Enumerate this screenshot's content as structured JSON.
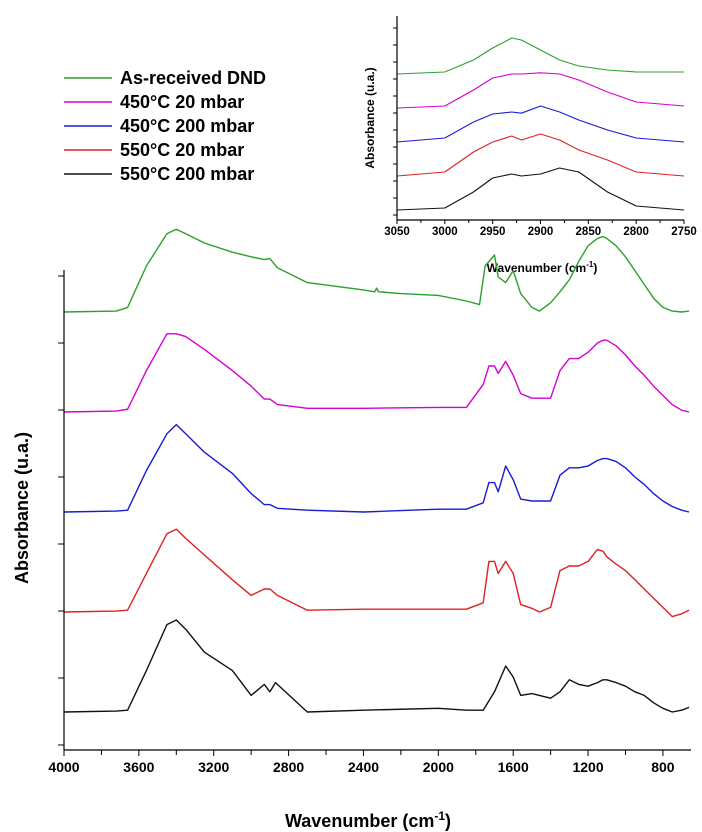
{
  "chart_data": [
    {
      "type": "line",
      "id": "main",
      "xlabel": "Wavenumber (cm",
      "xlabel_sup": "-1",
      "xlabel_tail": ")",
      "ylabel": "Absorbance (u.a.)",
      "xlim": [
        4000,
        650
      ],
      "x_reversed": true,
      "xticks": [
        4000,
        3600,
        3200,
        2800,
        2400,
        2000,
        1600,
        1200,
        800
      ],
      "y_ticks_labeled": false,
      "grid": false,
      "series": [
        {
          "name": "As-received DND",
          "color": "#2ca02c",
          "offset": 4,
          "x": [
            4000,
            3720,
            3660,
            3560,
            3450,
            3400,
            3350,
            3250,
            3100,
            3000,
            2930,
            2900,
            2860,
            2700,
            2400,
            2340,
            2330,
            2320,
            2200,
            2000,
            1850,
            1780,
            1750,
            1700,
            1680,
            1640,
            1600,
            1560,
            1500,
            1460,
            1400,
            1350,
            1300,
            1250,
            1200,
            1150,
            1120,
            1100,
            1050,
            1000,
            950,
            900,
            850,
            800,
            750,
            700,
            660
          ],
          "y": [
            0,
            0.01,
            0.05,
            0.5,
            0.85,
            0.9,
            0.85,
            0.75,
            0.65,
            0.6,
            0.57,
            0.58,
            0.48,
            0.32,
            0.24,
            0.22,
            0.26,
            0.22,
            0.2,
            0.18,
            0.12,
            0.08,
            0.5,
            0.62,
            0.38,
            0.32,
            0.45,
            0.2,
            0.05,
            0.01,
            0.1,
            0.22,
            0.35,
            0.55,
            0.72,
            0.8,
            0.82,
            0.8,
            0.72,
            0.6,
            0.45,
            0.3,
            0.15,
            0.05,
            0.01,
            0.0,
            0.01
          ]
        },
        {
          "name": "450°C 20 mbar",
          "color": "#d400d4",
          "offset": 3,
          "x": [
            4000,
            3720,
            3660,
            3560,
            3450,
            3400,
            3350,
            3250,
            3100,
            3000,
            2930,
            2900,
            2860,
            2700,
            2400,
            2000,
            1850,
            1760,
            1730,
            1700,
            1680,
            1640,
            1600,
            1560,
            1500,
            1460,
            1400,
            1350,
            1300,
            1250,
            1200,
            1150,
            1120,
            1100,
            1050,
            1000,
            950,
            900,
            850,
            800,
            750,
            700,
            660
          ],
          "y": [
            0.0,
            0.01,
            0.03,
            0.45,
            0.85,
            0.85,
            0.82,
            0.68,
            0.45,
            0.28,
            0.14,
            0.14,
            0.08,
            0.04,
            0.04,
            0.05,
            0.05,
            0.3,
            0.5,
            0.5,
            0.42,
            0.55,
            0.4,
            0.2,
            0.15,
            0.15,
            0.15,
            0.45,
            0.58,
            0.58,
            0.65,
            0.75,
            0.78,
            0.78,
            0.72,
            0.62,
            0.5,
            0.4,
            0.28,
            0.18,
            0.08,
            0.02,
            0.0
          ]
        },
        {
          "name": "450°C 200 mbar",
          "color": "#1a1ad4",
          "offset": 2,
          "x": [
            4000,
            3720,
            3660,
            3560,
            3450,
            3400,
            3350,
            3250,
            3100,
            3000,
            2930,
            2900,
            2860,
            2700,
            2400,
            2000,
            1850,
            1760,
            1730,
            1700,
            1680,
            1640,
            1600,
            1560,
            1500,
            1460,
            1400,
            1350,
            1300,
            1250,
            1200,
            1150,
            1120,
            1100,
            1050,
            1000,
            950,
            900,
            850,
            800,
            750,
            700,
            660
          ],
          "y": [
            0.0,
            0.01,
            0.02,
            0.45,
            0.85,
            0.95,
            0.85,
            0.65,
            0.42,
            0.2,
            0.08,
            0.08,
            0.04,
            0.02,
            0.0,
            0.03,
            0.03,
            0.1,
            0.32,
            0.32,
            0.22,
            0.5,
            0.35,
            0.14,
            0.12,
            0.12,
            0.12,
            0.4,
            0.48,
            0.48,
            0.5,
            0.56,
            0.58,
            0.58,
            0.55,
            0.48,
            0.38,
            0.3,
            0.2,
            0.12,
            0.06,
            0.02,
            0.0
          ]
        },
        {
          "name": "550°C 20 mbar",
          "color": "#e02020",
          "offset": 1,
          "x": [
            4000,
            3720,
            3660,
            3560,
            3450,
            3400,
            3350,
            3250,
            3100,
            3000,
            2930,
            2900,
            2860,
            2700,
            2400,
            2000,
            1850,
            1760,
            1730,
            1700,
            1680,
            1640,
            1600,
            1560,
            1500,
            1460,
            1400,
            1350,
            1300,
            1250,
            1200,
            1150,
            1120,
            1100,
            1050,
            1000,
            950,
            900,
            850,
            800,
            750,
            700,
            660
          ],
          "y": [
            0.0,
            0.01,
            0.02,
            0.42,
            0.85,
            0.9,
            0.8,
            0.62,
            0.35,
            0.18,
            0.25,
            0.25,
            0.18,
            0.02,
            0.03,
            0.03,
            0.03,
            0.1,
            0.55,
            0.55,
            0.42,
            0.55,
            0.42,
            0.08,
            0.04,
            0.0,
            0.05,
            0.45,
            0.5,
            0.5,
            0.55,
            0.68,
            0.66,
            0.6,
            0.52,
            0.45,
            0.35,
            0.25,
            0.15,
            0.05,
            -0.05,
            -0.02,
            0.02
          ]
        },
        {
          "name": "550°C 200 mbar",
          "color": "#111111",
          "offset": 0,
          "x": [
            4000,
            3720,
            3660,
            3560,
            3450,
            3400,
            3350,
            3250,
            3100,
            3000,
            2930,
            2900,
            2870,
            2700,
            2400,
            2000,
            1850,
            1760,
            1700,
            1640,
            1600,
            1560,
            1500,
            1460,
            1400,
            1350,
            1300,
            1250,
            1200,
            1150,
            1120,
            1100,
            1050,
            1000,
            950,
            900,
            850,
            800,
            750,
            700,
            660
          ],
          "y": [
            0.0,
            0.01,
            0.02,
            0.45,
            0.95,
            1.0,
            0.9,
            0.65,
            0.45,
            0.18,
            0.3,
            0.22,
            0.32,
            0.0,
            0.02,
            0.04,
            0.02,
            0.02,
            0.22,
            0.5,
            0.38,
            0.18,
            0.2,
            0.18,
            0.15,
            0.22,
            0.35,
            0.3,
            0.28,
            0.32,
            0.35,
            0.35,
            0.32,
            0.28,
            0.22,
            0.18,
            0.1,
            0.04,
            0.0,
            0.02,
            0.05
          ]
        }
      ]
    },
    {
      "type": "line",
      "id": "inset",
      "xlabel": "Wavenumber (cm",
      "xlabel_sup": "-1",
      "xlabel_tail": ")",
      "ylabel": "Absorbance (u.a.)",
      "xlim": [
        3050,
        2750
      ],
      "x_reversed": true,
      "xticks": [
        3050,
        3000,
        2950,
        2900,
        2850,
        2800,
        2750
      ],
      "y_ticks_labeled": false,
      "grid": false,
      "series": [
        {
          "name": "As-received DND",
          "color": "#2ca02c",
          "offset": 4,
          "x": [
            3050,
            3000,
            2970,
            2950,
            2930,
            2920,
            2900,
            2880,
            2860,
            2830,
            2800,
            2750
          ],
          "y": [
            0.0,
            0.05,
            0.35,
            0.65,
            0.9,
            0.85,
            0.6,
            0.35,
            0.2,
            0.1,
            0.05,
            0.05
          ]
        },
        {
          "name": "450°C 20 mbar",
          "color": "#d400d4",
          "offset": 3,
          "x": [
            3050,
            3000,
            2970,
            2950,
            2930,
            2920,
            2900,
            2880,
            2860,
            2830,
            2800,
            2750
          ],
          "y": [
            0.0,
            0.05,
            0.45,
            0.75,
            0.85,
            0.85,
            0.88,
            0.85,
            0.7,
            0.4,
            0.15,
            0.05
          ]
        },
        {
          "name": "450°C 200 mbar",
          "color": "#1a1ad4",
          "offset": 2,
          "x": [
            3050,
            3000,
            2970,
            2950,
            2930,
            2920,
            2900,
            2880,
            2860,
            2830,
            2800,
            2750
          ],
          "y": [
            0.0,
            0.1,
            0.5,
            0.7,
            0.75,
            0.72,
            0.9,
            0.75,
            0.55,
            0.3,
            0.1,
            0.0
          ]
        },
        {
          "name": "550°C 20 mbar",
          "color": "#e02020",
          "offset": 1,
          "x": [
            3050,
            3000,
            2970,
            2950,
            2930,
            2920,
            2900,
            2880,
            2860,
            2830,
            2800,
            2750
          ],
          "y": [
            0.0,
            0.1,
            0.6,
            0.85,
            1.0,
            0.9,
            1.05,
            0.9,
            0.65,
            0.4,
            0.1,
            0.0
          ]
        },
        {
          "name": "550°C 200 mbar",
          "color": "#111111",
          "offset": 0,
          "x": [
            3050,
            3000,
            2970,
            2950,
            2930,
            2920,
            2900,
            2880,
            2860,
            2830,
            2800,
            2750
          ],
          "y": [
            0.0,
            0.05,
            0.45,
            0.8,
            0.9,
            0.85,
            0.9,
            1.05,
            0.95,
            0.45,
            0.1,
            0.0
          ]
        }
      ]
    }
  ]
}
